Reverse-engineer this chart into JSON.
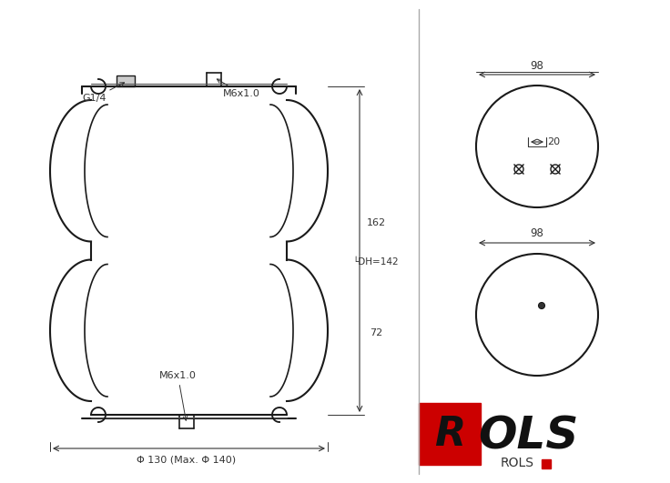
{
  "bg_color": "#ffffff",
  "line_color": "#1a1a1a",
  "dim_color": "#333333",
  "red_color": "#cc0000",
  "fig_width": 7.36,
  "fig_height": 5.31,
  "labels": {
    "G14": "G1/4",
    "M6x1_top": "M6x1.0",
    "M6x1_bottom": "M6x1.0",
    "dim_162": "162",
    "dim_DH142": "└DH=142",
    "dim_72": "72",
    "dim_phi": "Φ 130 (Max. Φ 140)",
    "dim_98_top": "98",
    "dim_20": "20",
    "dim_98_bottom": "98",
    "rols_text": "ROLS"
  }
}
